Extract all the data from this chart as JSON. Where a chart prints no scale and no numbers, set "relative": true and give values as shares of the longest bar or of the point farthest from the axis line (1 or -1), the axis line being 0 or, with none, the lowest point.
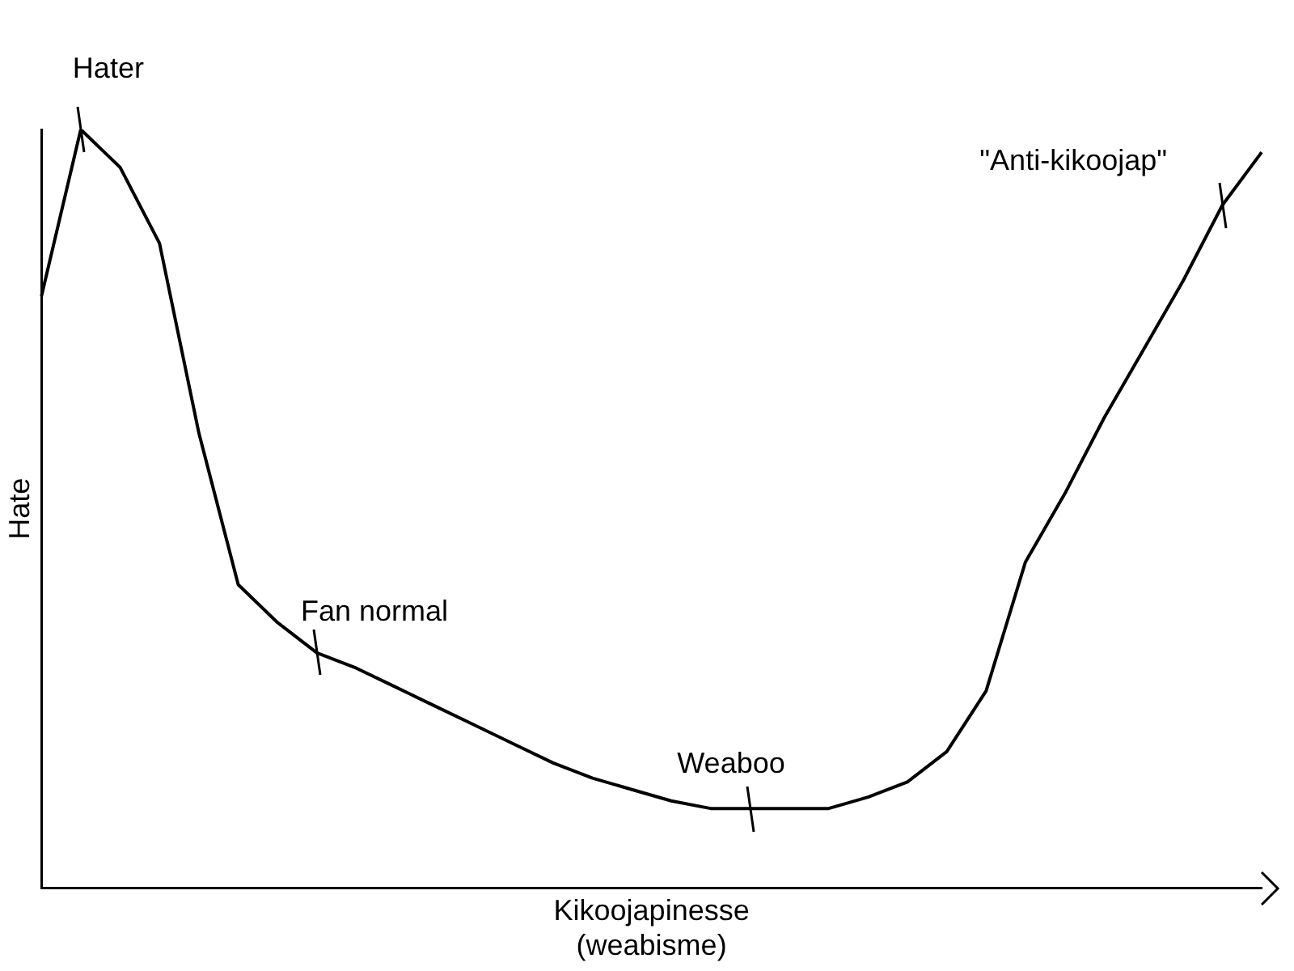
{
  "chart_data": {
    "type": "line",
    "relative": true,
    "xlabel": "Kikoojapinesse\n(weabisme)",
    "ylabel": "Hate",
    "color": "#000000",
    "marker": "none",
    "legend": false,
    "grid": false,
    "categories": [
      null,
      null,
      null,
      null,
      null,
      null,
      null,
      null,
      null,
      null,
      null,
      null,
      null,
      null,
      null,
      null,
      null,
      null,
      null,
      null,
      null,
      null,
      null,
      null,
      null,
      null,
      null,
      null,
      null,
      null,
      null,
      null
    ],
    "values": [
      0.78,
      1,
      0.95,
      0.85,
      0.6,
      0.4,
      0.35,
      0.31,
      0.29,
      0.265,
      0.24,
      0.215,
      0.19,
      0.165,
      0.145,
      0.13,
      0.115,
      0.105,
      0.105,
      0.105,
      0.105,
      0.12,
      0.14,
      0.18,
      0.26,
      0.43,
      0.52,
      0.62,
      0.71,
      0.8,
      0.9,
      0.97
    ],
    "annotations": [
      "Hater",
      "Fan normal",
      "Weaboo",
      "\"Anti-kikoojap\""
    ]
  }
}
